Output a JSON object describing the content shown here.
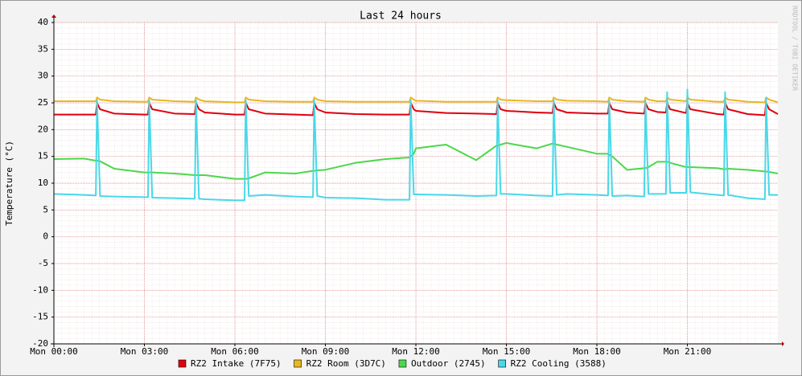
{
  "chart_data": {
    "type": "line",
    "title": "Last 24 hours",
    "y_label": "Temperature (°C)",
    "watermark": "RRDTOOL / TOBI OETIKER",
    "x": [
      0,
      1,
      1.39,
      1.43,
      1.53,
      2,
      3,
      3.12,
      3.16,
      3.26,
      4,
      4.67,
      4.71,
      4.81,
      5,
      6,
      6.32,
      6.36,
      6.46,
      7,
      8,
      8.59,
      8.63,
      8.73,
      9,
      10,
      11,
      11.79,
      11.83,
      11.93,
      12,
      13,
      14,
      14.67,
      14.71,
      14.81,
      15,
      16,
      16.53,
      16.57,
      16.67,
      17,
      18,
      18.37,
      18.41,
      18.51,
      19,
      19.57,
      19.61,
      19.71,
      20,
      20.29,
      20.33,
      20.43,
      20.96,
      21,
      21.1,
      22,
      22.21,
      22.25,
      22.35,
      23,
      23.57,
      23.61,
      23.71,
      24
    ],
    "xlim": [
      0,
      24
    ],
    "xticks": [
      {
        "value": 0,
        "label": "Mon 00:00"
      },
      {
        "value": 3,
        "label": "Mon 03:00"
      },
      {
        "value": 6,
        "label": "Mon 06:00"
      },
      {
        "value": 9,
        "label": "Mon 09:00"
      },
      {
        "value": 12,
        "label": "Mon 12:00"
      },
      {
        "value": 15,
        "label": "Mon 15:00"
      },
      {
        "value": 18,
        "label": "Mon 18:00"
      },
      {
        "value": 21,
        "label": "Mon 21:00"
      }
    ],
    "ylim": [
      -20,
      40
    ],
    "yticks": [
      -20,
      -15,
      -10,
      -5,
      0,
      5,
      10,
      15,
      20,
      25,
      30,
      35,
      40
    ],
    "grid": true,
    "series": [
      {
        "name": "RZ2 Intake (7F75)",
        "color": "#e0000e",
        "values": [
          22.8,
          22.8,
          22.8,
          25,
          23.8,
          23,
          22.8,
          22.8,
          25,
          23.8,
          23,
          22.9,
          25,
          23.8,
          23.2,
          22.8,
          22.8,
          25,
          23.8,
          23,
          22.8,
          22.7,
          25,
          23.8,
          23.2,
          22.9,
          22.8,
          22.8,
          25,
          23.8,
          23.5,
          23.1,
          23,
          22.9,
          25,
          23.8,
          23.5,
          23.2,
          23.1,
          25,
          23.8,
          23.2,
          23,
          23,
          25,
          23.8,
          23.2,
          23,
          25,
          23.8,
          23.3,
          23.2,
          25,
          23.8,
          23.1,
          25,
          23.8,
          22.9,
          22.8,
          25,
          23.8,
          22.9,
          22.7,
          25,
          23.8,
          22.9
        ]
      },
      {
        "name": "RZ2 Room (3D7C)",
        "color": "#e8b820",
        "values": [
          25.3,
          25.3,
          25.3,
          26,
          25.6,
          25.3,
          25.2,
          25.2,
          26,
          25.6,
          25.3,
          25.2,
          26,
          25.6,
          25.3,
          25.1,
          25.1,
          26,
          25.6,
          25.3,
          25.2,
          25.2,
          26,
          25.6,
          25.3,
          25.2,
          25.2,
          25.2,
          26,
          25.6,
          25.4,
          25.2,
          25.2,
          25.2,
          26,
          25.6,
          25.5,
          25.3,
          25.3,
          26,
          25.6,
          25.4,
          25.3,
          25.2,
          26,
          25.6,
          25.3,
          25.2,
          26,
          25.6,
          25.3,
          25.3,
          26,
          25.6,
          25.3,
          26,
          25.6,
          25.2,
          25.2,
          26,
          25.6,
          25.2,
          25.1,
          26,
          25.6,
          25.1
        ]
      },
      {
        "name": "Outdoor (2745)",
        "color": "#4ad84a",
        "values": [
          14.5,
          14.6,
          14.2,
          14.2,
          14.1,
          12.7,
          12,
          12,
          12,
          12,
          11.8,
          11.5,
          11.5,
          11.5,
          11.5,
          10.8,
          10.8,
          10.8,
          10.9,
          12,
          11.8,
          12.3,
          12.3,
          12.4,
          12.5,
          13.8,
          14.5,
          14.8,
          15,
          15.5,
          16.5,
          17.2,
          14.3,
          17,
          17,
          17.2,
          17.5,
          16.5,
          17.4,
          17.4,
          17.2,
          16.8,
          15.5,
          15.5,
          15.3,
          15,
          12.5,
          12.8,
          12.8,
          13,
          14,
          14,
          14,
          13.8,
          13,
          13,
          13,
          12.8,
          12.6,
          12.6,
          12.7,
          12.5,
          12.2,
          12.2,
          12.1,
          11.8
        ]
      },
      {
        "name": "RZ2 Cooling (3588)",
        "color": "#48d8e8",
        "values": [
          8,
          7.8,
          7.7,
          25.5,
          7.6,
          7.5,
          7.4,
          7.4,
          25.5,
          7.3,
          7.2,
          7.1,
          25.5,
          7.1,
          7,
          6.8,
          6.8,
          25.5,
          7.6,
          7.8,
          7.5,
          7.4,
          25.5,
          7.6,
          7.3,
          7.2,
          6.9,
          6.9,
          25.5,
          7.9,
          7.9,
          7.8,
          7.6,
          7.7,
          25.5,
          8,
          8,
          7.7,
          7.6,
          25.5,
          7.8,
          8,
          7.8,
          7.7,
          25.5,
          7.6,
          7.7,
          7.5,
          25.5,
          8,
          8,
          8,
          27,
          8.2,
          8.2,
          27.5,
          8.3,
          7.8,
          7.7,
          27,
          7.8,
          7.2,
          7,
          26,
          7.8,
          7.8
        ]
      }
    ]
  }
}
